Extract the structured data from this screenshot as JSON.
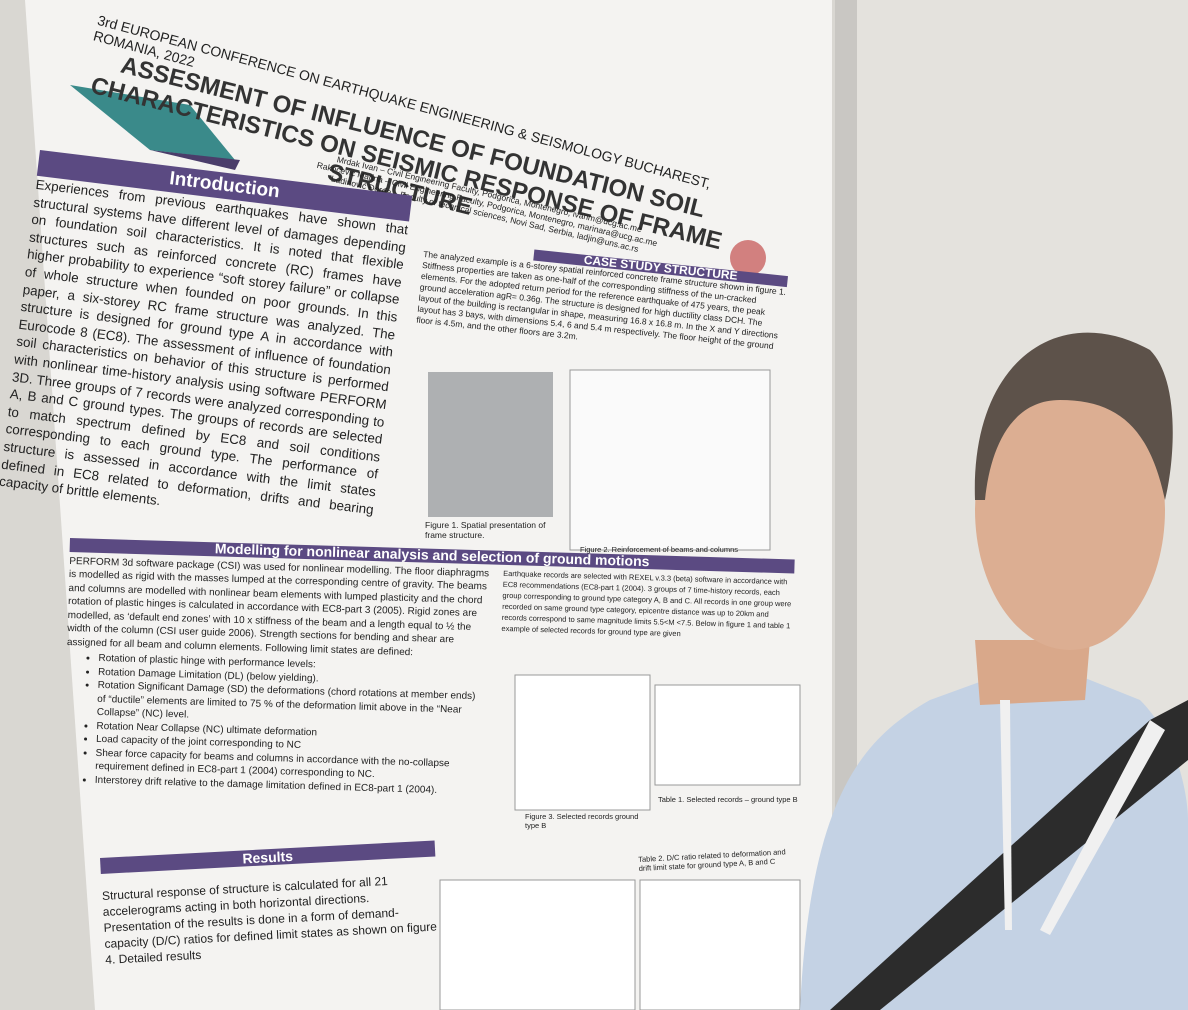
{
  "poster": {
    "conference": "3rd EUROPEAN CONFERENCE ON EARTHQUAKE ENGINEERING & SEISMOLOGY BUCHAREST, ROMANIA, 2022",
    "title": "ASSESMENT OF INFLUENCE OF FOUNDATION SOIL CHARACTERISTICS ON SEISMIC RESPONSE OF FRAME STRUCTURE",
    "authors": [
      "Mrdak Ivan – Civil Engineering Faculty, Podgorica, Montenegro, ivanm@ucg.ac.me",
      "Rakocevic Marina – Civil Engineering Faculty, Podgorica, Montenegro, marinara@ucg.ac.me",
      "Ladinović Đorđe – Faculty of technical sciences, Novi Sad, Serbia, ladjin@uns.ac.rs"
    ],
    "introduction": {
      "heading": "Introduction",
      "text": "Experiences from previous earthquakes have shown that structural systems have different level of damages depending on foundation soil characteristics. It is noted that flexible structures such as reinforced concrete (RC) frames have higher probability to experience “soft storey failure” or collapse of whole structure when founded on poor grounds. In this paper, a six-storey RC frame structure was analyzed. The structure is designed for ground type A in accordance with Eurocode 8 (EC8). The assessment of influence of foundation soil characteristics on behavior of this structure is performed with nonlinear time-history analysis using software PERFORM 3D. Three groups of 7 records were analyzed corresponding to A, B and C ground types. The groups of records are selected to match spectrum defined by EC8 and soil conditions corresponding to each ground type. The performance of structure is assessed in accordance with the limit states defined in EC8 related to deformation, drifts and bearing capacity of brittle elements."
    },
    "case_study": {
      "heading": "CASE STUDY STRUCTURE",
      "text": "The analyzed example is a 6-storey spatial reinforced concrete frame structure shown in figure 1. Stiffness properties are taken as one-half of the corresponding stiffness of the un-cracked elements. For the adopted return period for the reference earthquake of 475 years, the peak ground acceleration agR= 0.36g. The structure is designed for high ductility class DCH. The layout of the building is rectangular in shape, measuring 16.8 x 16.8 m. In the X and Y directions layout has 3 bays, with dimensions 5.4, 6 and 5.4 m respectively. The floor height of the ground floor is 4.5m, and the other floors are 3.2m.",
      "figure1": "Figure 1. Spatial presentation of frame structure.",
      "figure2": "Figure 2. Reinforcement of beams and columns"
    },
    "modelling": {
      "heading": "Modelling for nonlinear analysis and selection of ground motions",
      "text": "PERFORM 3d software package (CSI) was used for nonlinear modelling. The floor diaphragms is modelled as rigid with the masses lumped at the corresponding centre of gravity. The beams and columns are modelled with nonlinear beam elements with lumped plasticity and the chord rotation of plastic hinges is calculated in accordance with EC8-part 3 (2005). Rigid zones are modelled, as ‘default end zones’ with 10 x stiffness of the beam and a length equal to ½ the width of the column (CSI user guide 2006). Strength sections for bending and shear are assigned for all beam and column elements. Following limit states are defined:",
      "list": [
        "Rotation of plastic hinge with performance levels:",
        "Rotation Damage Limitation (DL) (below yielding).",
        "Rotation Significant Damage (SD) the deformations (chord rotations at member ends) of “ductile” elements are limited to 75 % of the deformation limit above in the “Near Collapse” (NC) level.",
        "Rotation Near Collapse (NC) ultimate deformation",
        "Load capacity of the joint corresponding to NC",
        "Shear force capacity for beams and columns in accordance with the no-collapse requirement defined in EC8-part 1 (2004) corresponding to NC.",
        "Interstorey drift relative to the damage limitation defined in EC8-part 1 (2004)."
      ],
      "right_text": "Earthquake records are selected with REXEL v.3.3 (beta) software in accordance with EC8 recommendations (EC8-part 1 (2004). 3 groups of 7 time-history records, each group corresponding to ground type category A, B and C. All records in one group were recorded on same ground type category, epicentre distance was up to 20km and records correspond to same magnitude limits 5.5<M <7.5. Below in figure 1 and table 1 example of selected records for ground type are given",
      "figure3": "Figure 3. Selected records ground type B",
      "table1": "Table 1. Selected records – ground type B"
    },
    "results": {
      "heading": "Results",
      "text": "Structural response of structure is calculated for all 21 accelerograms acting in both horizontal directions. Presentation of the results is done in a form of demand-capacity (D/C) ratios for defined limit states as shown on figure 4. Detailed results",
      "table2": "Table 2. D/C ratio related to deformation and drift limit state for ground type A, B and C"
    }
  }
}
